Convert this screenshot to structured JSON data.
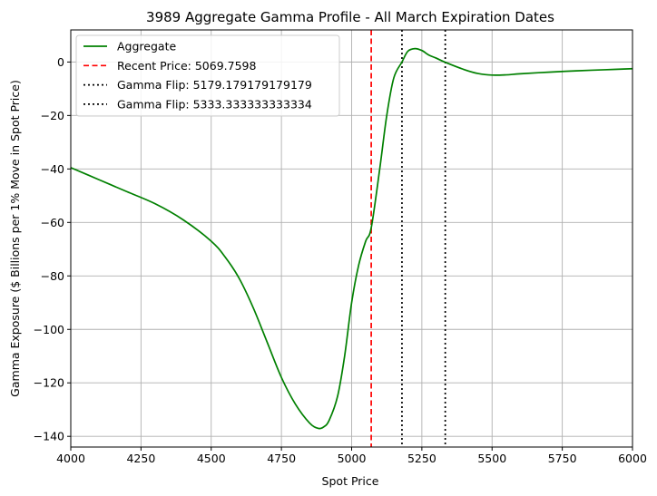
{
  "chart_data": {
    "type": "line",
    "title": "3989 Aggregate Gamma Profile - All March Expiration Dates",
    "xlabel": "Spot Price",
    "ylabel": "Gamma Exposure ($ Billions per 1% Move in Spot Price)",
    "xlim": [
      4000,
      6000
    ],
    "ylim": [
      -144,
      12
    ],
    "xticks": [
      4000,
      4250,
      4500,
      4750,
      5000,
      5250,
      5500,
      5750,
      6000
    ],
    "yticks": [
      -140,
      -120,
      -100,
      -80,
      -60,
      -40,
      -20,
      0
    ],
    "grid": true,
    "legend_position": "upper-left",
    "series": [
      {
        "name": "Aggregate",
        "color": "#008000",
        "style": "solid",
        "x": [
          4000,
          4100,
          4200,
          4300,
          4400,
          4500,
          4550,
          4600,
          4650,
          4700,
          4750,
          4800,
          4850,
          4880,
          4900,
          4920,
          4950,
          4975,
          5000,
          5025,
          5050,
          5069.76,
          5100,
          5125,
          5150,
          5179.18,
          5200,
          5225,
          5250,
          5275,
          5300,
          5333.33,
          5400,
          5450,
          5500,
          5550,
          5600,
          5700,
          5800,
          5900,
          6000
        ],
        "y": [
          -39.5,
          -44,
          -48.5,
          -53,
          -59,
          -67,
          -73,
          -81,
          -92,
          -105,
          -118,
          -128,
          -135,
          -137,
          -136.5,
          -134,
          -125,
          -110,
          -90,
          -76,
          -67,
          -62,
          -40,
          -20,
          -6,
          0,
          4,
          5,
          4.3,
          2.6,
          1.5,
          -0.1,
          -2.8,
          -4.3,
          -4.9,
          -4.8,
          -4.4,
          -3.8,
          -3.3,
          -2.9,
          -2.5
        ]
      }
    ],
    "vlines": [
      {
        "name": "Recent Price: 5069.7598",
        "x": 5069.7598,
        "color": "#ff0000",
        "style": "dashed"
      },
      {
        "name": "Gamma Flip: 5179.179179179179",
        "x": 5179.179179179179,
        "color": "#000000",
        "style": "dotted"
      },
      {
        "name": "Gamma Flip: 5333.333333333334",
        "x": 5333.333333333334,
        "color": "#000000",
        "style": "dotted"
      }
    ]
  }
}
